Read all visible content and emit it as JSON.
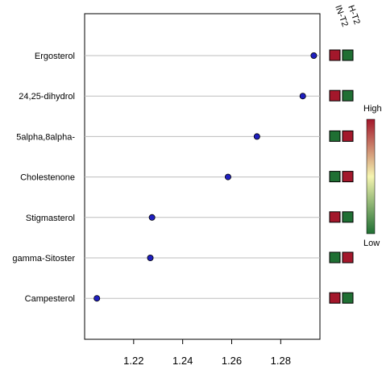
{
  "chart_data": {
    "type": "scatter",
    "title": "",
    "xlabel": "",
    "ylabel": "",
    "xlim": [
      1.2,
      1.296
    ],
    "x_ticks": [
      1.22,
      1.24,
      1.26,
      1.28
    ],
    "x_tick_labels": [
      "1.22",
      "1.24",
      "1.26",
      "1.28"
    ],
    "grid": "horizontal",
    "point_color": "#1f1fbf",
    "categories": [
      "Ergosterol",
      "24,25-dihydrol",
      "5alpha,8alpha-",
      "Cholestenone",
      "Stigmasterol",
      "gamma-Sitoster",
      "Campesterol"
    ],
    "values": [
      1.2935,
      1.289,
      1.2703,
      1.2585,
      1.2275,
      1.2268,
      1.205
    ],
    "heat_columns": [
      "IN-T2",
      "H-T2"
    ],
    "heat_levels": [
      [
        "high",
        "low"
      ],
      [
        "high",
        "low"
      ],
      [
        "low",
        "high"
      ],
      [
        "low",
        "high"
      ],
      [
        "high",
        "low"
      ],
      [
        "low",
        "high"
      ],
      [
        "high",
        "low"
      ]
    ],
    "heat_colors": {
      "high": "#a3172b",
      "low": "#1f6f33"
    },
    "legend": {
      "high_label": "High",
      "low_label": "Low",
      "gradient": [
        "#1f6f33",
        "#f5f5b0",
        "#a3172b"
      ],
      "placement": "right"
    }
  }
}
